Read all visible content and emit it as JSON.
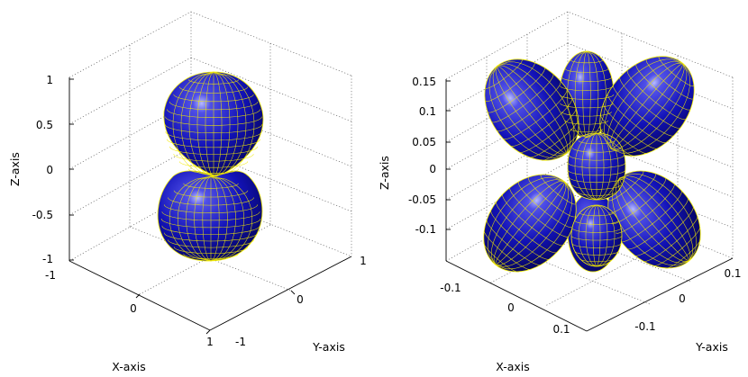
{
  "colors": {
    "surface": "#1010b4",
    "mesh": "#f2ea00",
    "highlight": "#aab0ff"
  },
  "chart_data": [
    {
      "type": "surface3d",
      "title": "",
      "xlabel": "X-axis",
      "ylabel": "Y-axis",
      "zlabel": "Z-axis",
      "xlim": [
        -1,
        1
      ],
      "ylim": [
        -1,
        1
      ],
      "zlim": [
        -1,
        1
      ],
      "xticks": [
        "-1",
        "0",
        "1"
      ],
      "yticks": [
        "-1",
        "0",
        "1"
      ],
      "zticks": [
        "-1",
        "-0.5",
        "0",
        "0.5",
        "1"
      ],
      "grid": true,
      "shape": "two vertical lobes (dumbbell)"
    },
    {
      "type": "surface3d",
      "title": "",
      "xlabel": "X-axis",
      "ylabel": "Y-axis",
      "zlabel": "Z-axis",
      "xlim": [
        -0.15,
        0.15
      ],
      "ylim": [
        -0.15,
        0.15
      ],
      "zlim": [
        -0.15,
        0.15
      ],
      "xticks": [
        "-0.1",
        "0",
        "0.1"
      ],
      "yticks": [
        "-0.1",
        "0",
        "0.1"
      ],
      "zticks": [
        "-0.1",
        "-0.05",
        "0",
        "0.05",
        "0.1",
        "0.15"
      ],
      "grid": true,
      "shape": "eight diagonal lobes plus central lobe"
    }
  ]
}
